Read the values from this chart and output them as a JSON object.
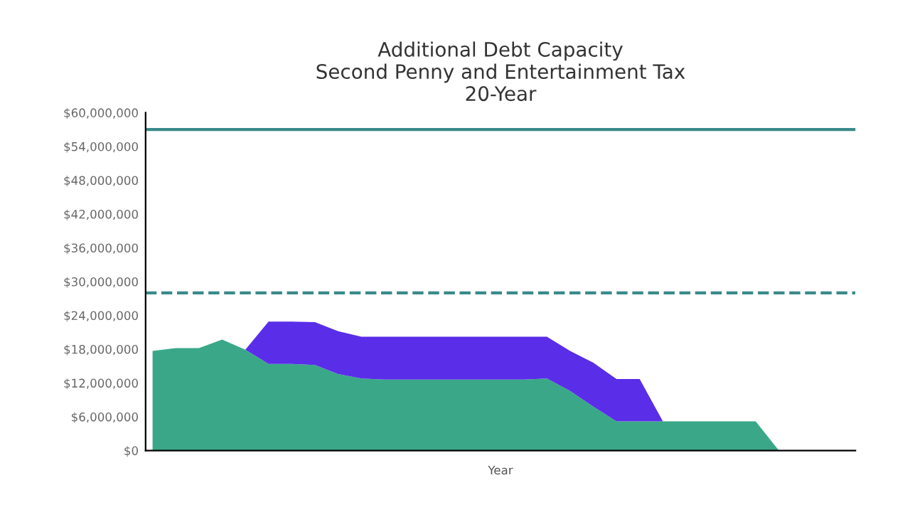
{
  "chart_data": {
    "type": "area",
    "stacked": true,
    "title": "Additional Debt Capacity\nSecond Penny and Entertainment Tax\n20-Year",
    "xlabel": "Year",
    "categories": [
      null,
      null,
      null,
      null,
      null,
      null,
      null,
      null,
      null,
      null,
      null,
      null,
      null,
      null,
      null,
      null,
      null,
      null,
      null,
      null,
      null,
      null,
      null,
      null,
      null,
      null,
      null,
      null,
      null,
      null,
      null
    ],
    "series": [
      {
        "color": "#3aa888",
        "values": [
          17700000,
          18200000,
          18200000,
          19700000,
          17900000,
          15400000,
          15400000,
          15200000,
          13600000,
          12800000,
          12600000,
          12600000,
          12600000,
          12600000,
          12600000,
          12600000,
          12600000,
          12800000,
          10600000,
          7800000,
          5200000,
          5200000,
          5200000,
          5200000,
          5200000,
          5200000,
          5200000,
          0,
          0,
          0,
          0
        ]
      },
      {
        "color": "#5a2de8",
        "values": [
          0,
          0,
          0,
          0,
          0,
          7500000,
          7500000,
          7600000,
          7600000,
          7400000,
          7600000,
          7600000,
          7600000,
          7600000,
          7600000,
          7600000,
          7600000,
          7400000,
          7100000,
          7800000,
          7500000,
          7500000,
          0,
          0,
          0,
          0,
          0,
          0,
          0,
          0,
          0
        ]
      }
    ],
    "ylim": [
      0,
      60000000
    ],
    "yticks": [
      {
        "value": 0,
        "label": "$0"
      },
      {
        "value": 6000000,
        "label": "$6,000,000"
      },
      {
        "value": 12000000,
        "label": "$12,000,000"
      },
      {
        "value": 18000000,
        "label": "$18,000,000"
      },
      {
        "value": 24000000,
        "label": "$24,000,000"
      },
      {
        "value": 30000000,
        "label": "$30,000,000"
      },
      {
        "value": 36000000,
        "label": "$36,000,000"
      },
      {
        "value": 42000000,
        "label": "$42,000,000"
      },
      {
        "value": 48000000,
        "label": "$48,000,000"
      },
      {
        "value": 54000000,
        "label": "$54,000,000"
      },
      {
        "value": 60000000,
        "label": "$60,000,000"
      }
    ],
    "ref_lines": [
      {
        "axis": "y",
        "value": 57000000,
        "color": "#3a8a8a",
        "line_style": "solid"
      },
      {
        "axis": "y",
        "value": 28000000,
        "color": "#3a8a8a",
        "line_style": "dashed"
      }
    ]
  }
}
